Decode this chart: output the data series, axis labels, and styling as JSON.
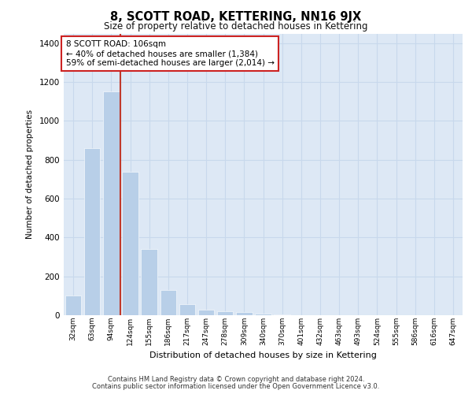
{
  "title": "8, SCOTT ROAD, KETTERING, NN16 9JX",
  "subtitle": "Size of property relative to detached houses in Kettering",
  "xlabel": "Distribution of detached houses by size in Kettering",
  "ylabel": "Number of detached properties",
  "categories": [
    "32sqm",
    "63sqm",
    "94sqm",
    "124sqm",
    "155sqm",
    "186sqm",
    "217sqm",
    "247sqm",
    "278sqm",
    "309sqm",
    "340sqm",
    "370sqm",
    "401sqm",
    "432sqm",
    "463sqm",
    "493sqm",
    "524sqm",
    "555sqm",
    "586sqm",
    "616sqm",
    "647sqm"
  ],
  "values": [
    100,
    860,
    1150,
    740,
    340,
    130,
    55,
    30,
    20,
    15,
    10,
    5,
    2,
    1,
    1,
    0,
    0,
    0,
    0,
    0,
    0
  ],
  "bar_color": "#b8cfe8",
  "highlighted_bar_index": 2,
  "vline_x_index": 2,
  "vline_color": "#c0392b",
  "annotation_line1": "8 SCOTT ROAD: 106sqm",
  "annotation_line2": "← 40% of detached houses are smaller (1,384)",
  "annotation_line3": "59% of semi-detached houses are larger (2,014) →",
  "annotation_box_facecolor": "#ffffff",
  "annotation_box_edgecolor": "#cc2222",
  "ylim": [
    0,
    1450
  ],
  "yticks": [
    0,
    200,
    400,
    600,
    800,
    1000,
    1200,
    1400
  ],
  "grid_color": "#c8d8ec",
  "plot_bg_color": "#dde8f5",
  "footer_line1": "Contains HM Land Registry data © Crown copyright and database right 2024.",
  "footer_line2": "Contains public sector information licensed under the Open Government Licence v3.0."
}
